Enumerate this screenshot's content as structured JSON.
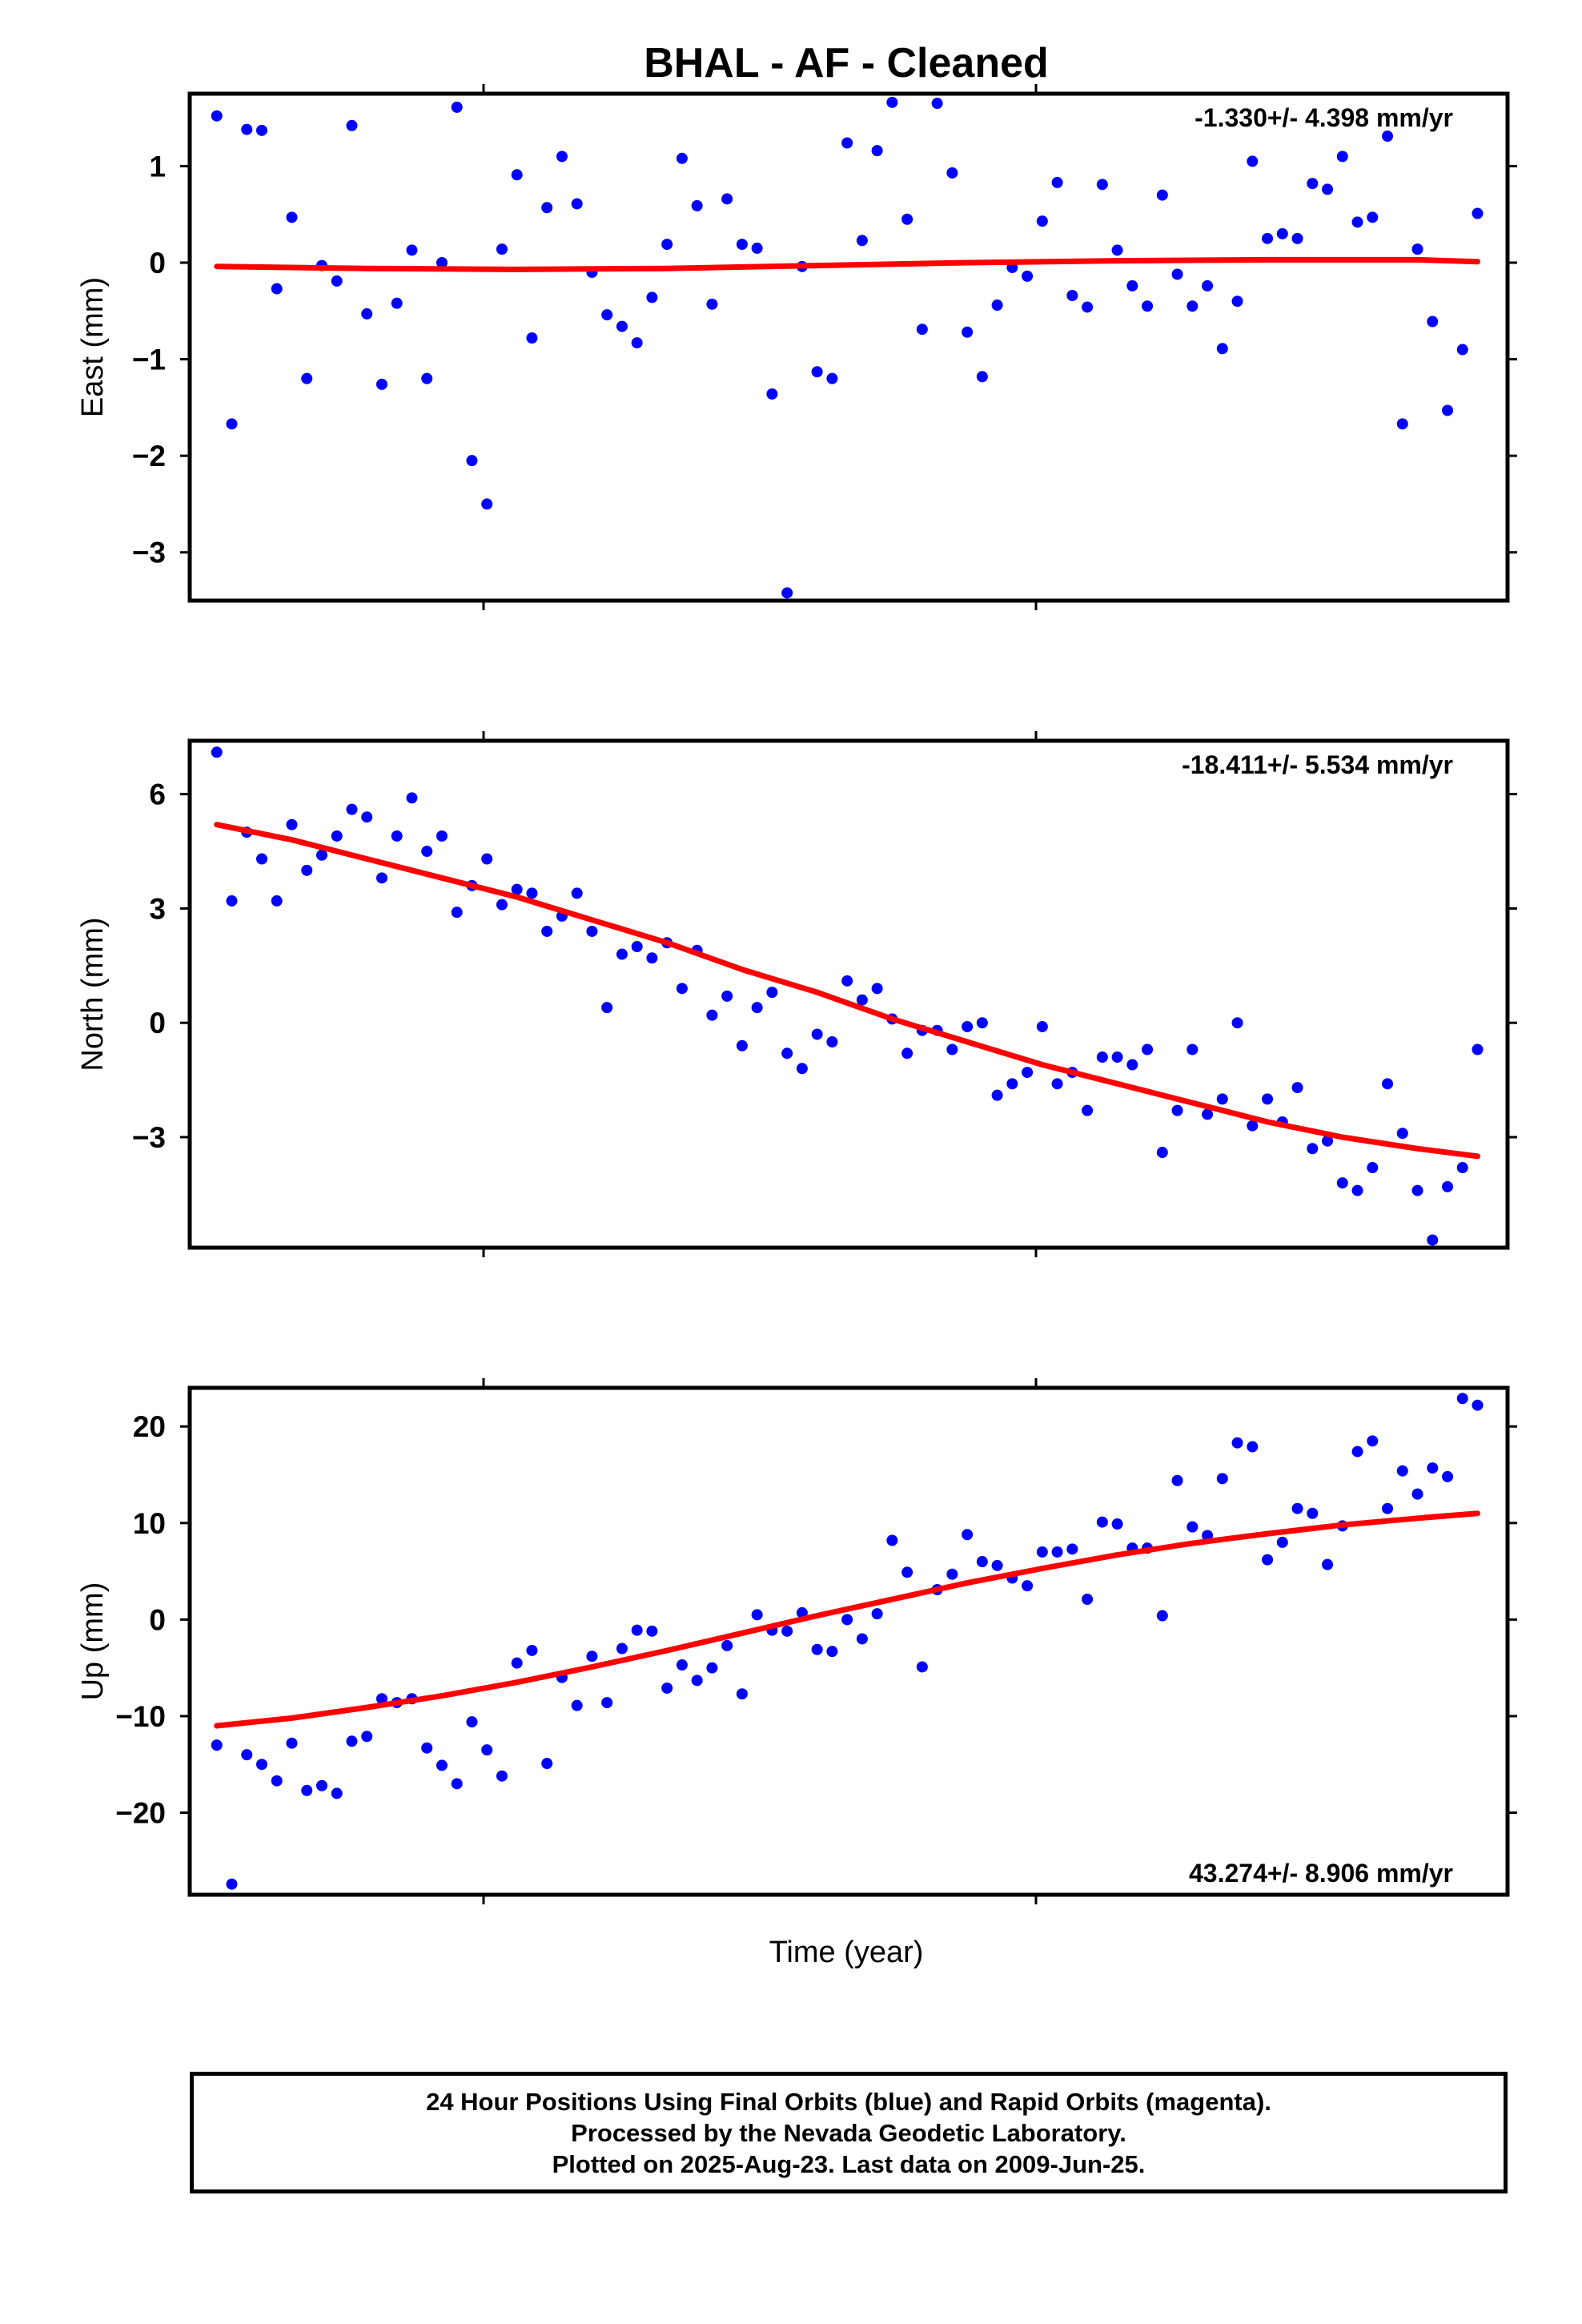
{
  "title": "BHAL  - AF - Cleaned",
  "xlabel": "Time (year)",
  "footer": {
    "line1": "24 Hour Positions Using Final Orbits (blue) and Rapid Orbits (magenta).",
    "line2": "Processed by the Nevada Geodetic Laboratory.",
    "line3": "Plotted on 2025-Aug-23. Last data on 2009-Jun-25."
  },
  "colors": {
    "points": "#0000ff",
    "fit": "#ff0000",
    "frame": "#000000"
  },
  "chart_data": [
    {
      "type": "scatter",
      "ylabel": "East (mm)",
      "rate_label": "-1.330+/- 4.398 mm/yr",
      "rate_position": "top-right",
      "x": [
        0,
        1,
        2,
        3,
        4,
        5,
        6,
        7,
        8,
        9,
        10,
        11,
        12,
        13,
        14,
        15,
        16,
        17,
        18,
        19,
        20,
        21,
        22,
        23,
        24,
        25,
        26,
        27,
        28,
        29,
        30,
        31,
        32,
        33,
        34,
        35,
        36,
        37,
        38,
        39,
        40,
        41,
        42,
        43,
        44,
        45,
        46,
        47,
        48,
        49,
        50,
        51,
        52,
        53,
        54,
        55,
        56,
        57,
        58,
        59,
        60,
        61,
        62,
        63,
        64,
        65,
        66,
        67,
        68,
        69,
        70,
        71,
        72,
        73,
        74,
        75,
        76,
        77,
        78,
        79,
        80,
        81,
        82,
        83,
        84
      ],
      "xlim": [
        -1.8,
        86.0
      ],
      "ylim": [
        -3.5,
        1.75
      ],
      "yticks": [
        1,
        0,
        -1,
        -2,
        -3
      ],
      "ytick_labels": [
        "1",
        "0",
        "−1",
        "−2",
        "−3"
      ],
      "values": [
        1.52,
        -1.67,
        1.38,
        1.37,
        -0.27,
        0.47,
        -1.2,
        -0.03,
        -0.19,
        1.42,
        -0.53,
        -1.26,
        -0.42,
        0.13,
        -1.2,
        0.0,
        1.61,
        -2.05,
        -2.5,
        0.14,
        0.91,
        -0.78,
        0.57,
        1.1,
        0.61,
        -0.1,
        -0.54,
        -0.66,
        -0.83,
        -0.36,
        0.19,
        1.08,
        0.59,
        -0.43,
        0.66,
        0.19,
        0.15,
        -1.36,
        -3.42,
        -0.04,
        -1.13,
        -1.2,
        1.24,
        0.23,
        1.16,
        1.66,
        0.45,
        -0.69,
        1.65,
        0.93,
        -0.72,
        -1.18,
        -0.44,
        -0.05,
        -0.14,
        0.43,
        0.83,
        -0.34,
        -0.46,
        0.81,
        0.13,
        -0.24,
        -0.45,
        0.7,
        -0.12,
        -0.45,
        -0.24,
        -0.89,
        -0.4,
        1.05,
        0.25,
        0.3,
        0.25,
        0.82,
        0.76,
        1.1,
        0.42,
        0.47,
        1.31,
        -1.67,
        0.14,
        -0.61,
        -1.53,
        -0.9,
        0.51
      ],
      "fit": [
        [
          0,
          -0.04
        ],
        [
          10,
          -0.06
        ],
        [
          20,
          -0.07
        ],
        [
          30,
          -0.06
        ],
        [
          40,
          -0.03
        ],
        [
          50,
          0.0
        ],
        [
          60,
          0.02
        ],
        [
          70,
          0.03
        ],
        [
          80,
          0.03
        ],
        [
          84,
          0.01
        ]
      ]
    },
    {
      "type": "scatter",
      "ylabel": "North (mm)",
      "rate_label": "-18.411+/- 5.534 mm/yr",
      "rate_position": "top-right",
      "x": [
        0,
        1,
        2,
        3,
        4,
        5,
        6,
        7,
        8,
        9,
        10,
        11,
        12,
        13,
        14,
        15,
        16,
        17,
        18,
        19,
        20,
        21,
        22,
        23,
        24,
        25,
        26,
        27,
        28,
        29,
        30,
        31,
        32,
        33,
        34,
        35,
        36,
        37,
        38,
        39,
        40,
        41,
        42,
        43,
        44,
        45,
        46,
        47,
        48,
        49,
        50,
        51,
        52,
        53,
        54,
        55,
        56,
        57,
        58,
        59,
        60,
        61,
        62,
        63,
        64,
        65,
        66,
        67,
        68,
        69,
        70,
        71,
        72,
        73,
        74,
        75,
        76,
        77,
        78,
        79,
        80,
        81,
        82,
        83,
        84
      ],
      "xlim": [
        -1.8,
        86.0
      ],
      "ylim": [
        -5.9,
        7.4
      ],
      "yticks": [
        6,
        3,
        0,
        -3
      ],
      "ytick_labels": [
        "6",
        "3",
        "0",
        "−3"
      ],
      "values": [
        7.1,
        3.2,
        5.0,
        4.3,
        3.2,
        5.2,
        4.0,
        4.4,
        4.9,
        5.6,
        5.4,
        3.8,
        4.9,
        5.9,
        4.5,
        4.9,
        2.9,
        3.6,
        4.3,
        3.1,
        3.5,
        3.4,
        2.4,
        2.8,
        3.4,
        2.4,
        0.4,
        1.8,
        2.0,
        1.7,
        2.1,
        0.9,
        1.9,
        0.2,
        0.7,
        -0.6,
        0.4,
        0.8,
        -0.8,
        -1.2,
        -0.3,
        -0.5,
        1.1,
        0.6,
        0.9,
        0.1,
        -0.8,
        -0.2,
        -0.2,
        -0.7,
        -0.1,
        0.0,
        -1.9,
        -1.6,
        -1.3,
        -0.1,
        -1.6,
        -1.3,
        -2.3,
        -0.9,
        -0.9,
        -1.1,
        -0.7,
        -3.4,
        -2.3,
        -0.7,
        -2.4,
        -2.0,
        0.0,
        -2.7,
        -2.0,
        -2.6,
        -1.7,
        -3.3,
        -3.1,
        -4.2,
        -4.4,
        -3.8,
        -1.6,
        -2.9,
        -4.4,
        -5.7,
        -4.3,
        -3.8,
        -0.7
      ],
      "fit": [
        [
          0,
          5.2
        ],
        [
          5,
          4.8
        ],
        [
          10,
          4.3
        ],
        [
          15,
          3.8
        ],
        [
          20,
          3.3
        ],
        [
          25,
          2.7
        ],
        [
          30,
          2.1
        ],
        [
          35,
          1.4
        ],
        [
          40,
          0.8
        ],
        [
          45,
          0.1
        ],
        [
          50,
          -0.5
        ],
        [
          55,
          -1.1
        ],
        [
          60,
          -1.6
        ],
        [
          65,
          -2.1
        ],
        [
          70,
          -2.6
        ],
        [
          75,
          -3.0
        ],
        [
          80,
          -3.3
        ],
        [
          84,
          -3.5
        ]
      ]
    },
    {
      "type": "scatter",
      "ylabel": "Up (mm)",
      "rate_label": "43.274+/- 8.906 mm/yr",
      "rate_position": "bottom-right",
      "x": [
        0,
        1,
        2,
        3,
        4,
        5,
        6,
        7,
        8,
        9,
        10,
        11,
        12,
        13,
        14,
        15,
        16,
        17,
        18,
        19,
        20,
        21,
        22,
        23,
        24,
        25,
        26,
        27,
        28,
        29,
        30,
        31,
        32,
        33,
        34,
        35,
        36,
        37,
        38,
        39,
        40,
        41,
        42,
        43,
        44,
        45,
        46,
        47,
        48,
        49,
        50,
        51,
        52,
        53,
        54,
        55,
        56,
        57,
        58,
        59,
        60,
        61,
        62,
        63,
        64,
        65,
        66,
        67,
        68,
        69,
        70,
        71,
        72,
        73,
        74,
        75,
        76,
        77,
        78,
        79,
        80,
        81,
        82,
        83,
        84
      ],
      "xlim": [
        -1.8,
        86.0
      ],
      "ylim": [
        -28.5,
        24.0
      ],
      "yticks": [
        20,
        10,
        0,
        -10,
        -20
      ],
      "ytick_labels": [
        "20",
        "10",
        "0",
        "−10",
        "−20"
      ],
      "values": [
        -13.0,
        -27.4,
        -14.0,
        -15.0,
        -16.7,
        -12.8,
        -17.7,
        -17.2,
        -18.0,
        -12.6,
        -12.1,
        -8.2,
        -8.6,
        -8.2,
        -13.3,
        -15.1,
        -17.0,
        -10.6,
        -13.5,
        -16.2,
        -4.5,
        -3.2,
        -14.9,
        -6.0,
        -8.9,
        -3.8,
        -8.6,
        -3.0,
        -1.1,
        -1.2,
        -7.1,
        -4.7,
        -6.3,
        -5.0,
        -2.7,
        -7.7,
        0.5,
        -1.1,
        -1.2,
        0.7,
        -3.1,
        -3.3,
        0.0,
        -2.0,
        0.6,
        8.2,
        4.9,
        -4.9,
        3.1,
        4.7,
        8.8,
        6.0,
        5.6,
        4.3,
        3.5,
        7.0,
        7.0,
        7.3,
        2.1,
        10.1,
        9.9,
        7.4,
        7.4,
        0.4,
        14.4,
        9.6,
        8.7,
        14.6,
        18.3,
        17.9,
        6.2,
        8.0,
        11.5,
        11.0,
        5.7,
        9.7,
        17.4,
        18.5,
        11.5,
        15.4,
        13.0,
        15.7,
        14.8,
        22.9,
        22.2
      ],
      "fit": [
        [
          0,
          -11.0
        ],
        [
          5,
          -10.2
        ],
        [
          10,
          -9.1
        ],
        [
          15,
          -7.9
        ],
        [
          20,
          -6.5
        ],
        [
          25,
          -4.9
        ],
        [
          30,
          -3.2
        ],
        [
          35,
          -1.4
        ],
        [
          40,
          0.4
        ],
        [
          45,
          2.1
        ],
        [
          50,
          3.8
        ],
        [
          55,
          5.3
        ],
        [
          60,
          6.7
        ],
        [
          65,
          7.9
        ],
        [
          70,
          8.9
        ],
        [
          75,
          9.8
        ],
        [
          80,
          10.5
        ],
        [
          84,
          11.0
        ]
      ]
    }
  ]
}
